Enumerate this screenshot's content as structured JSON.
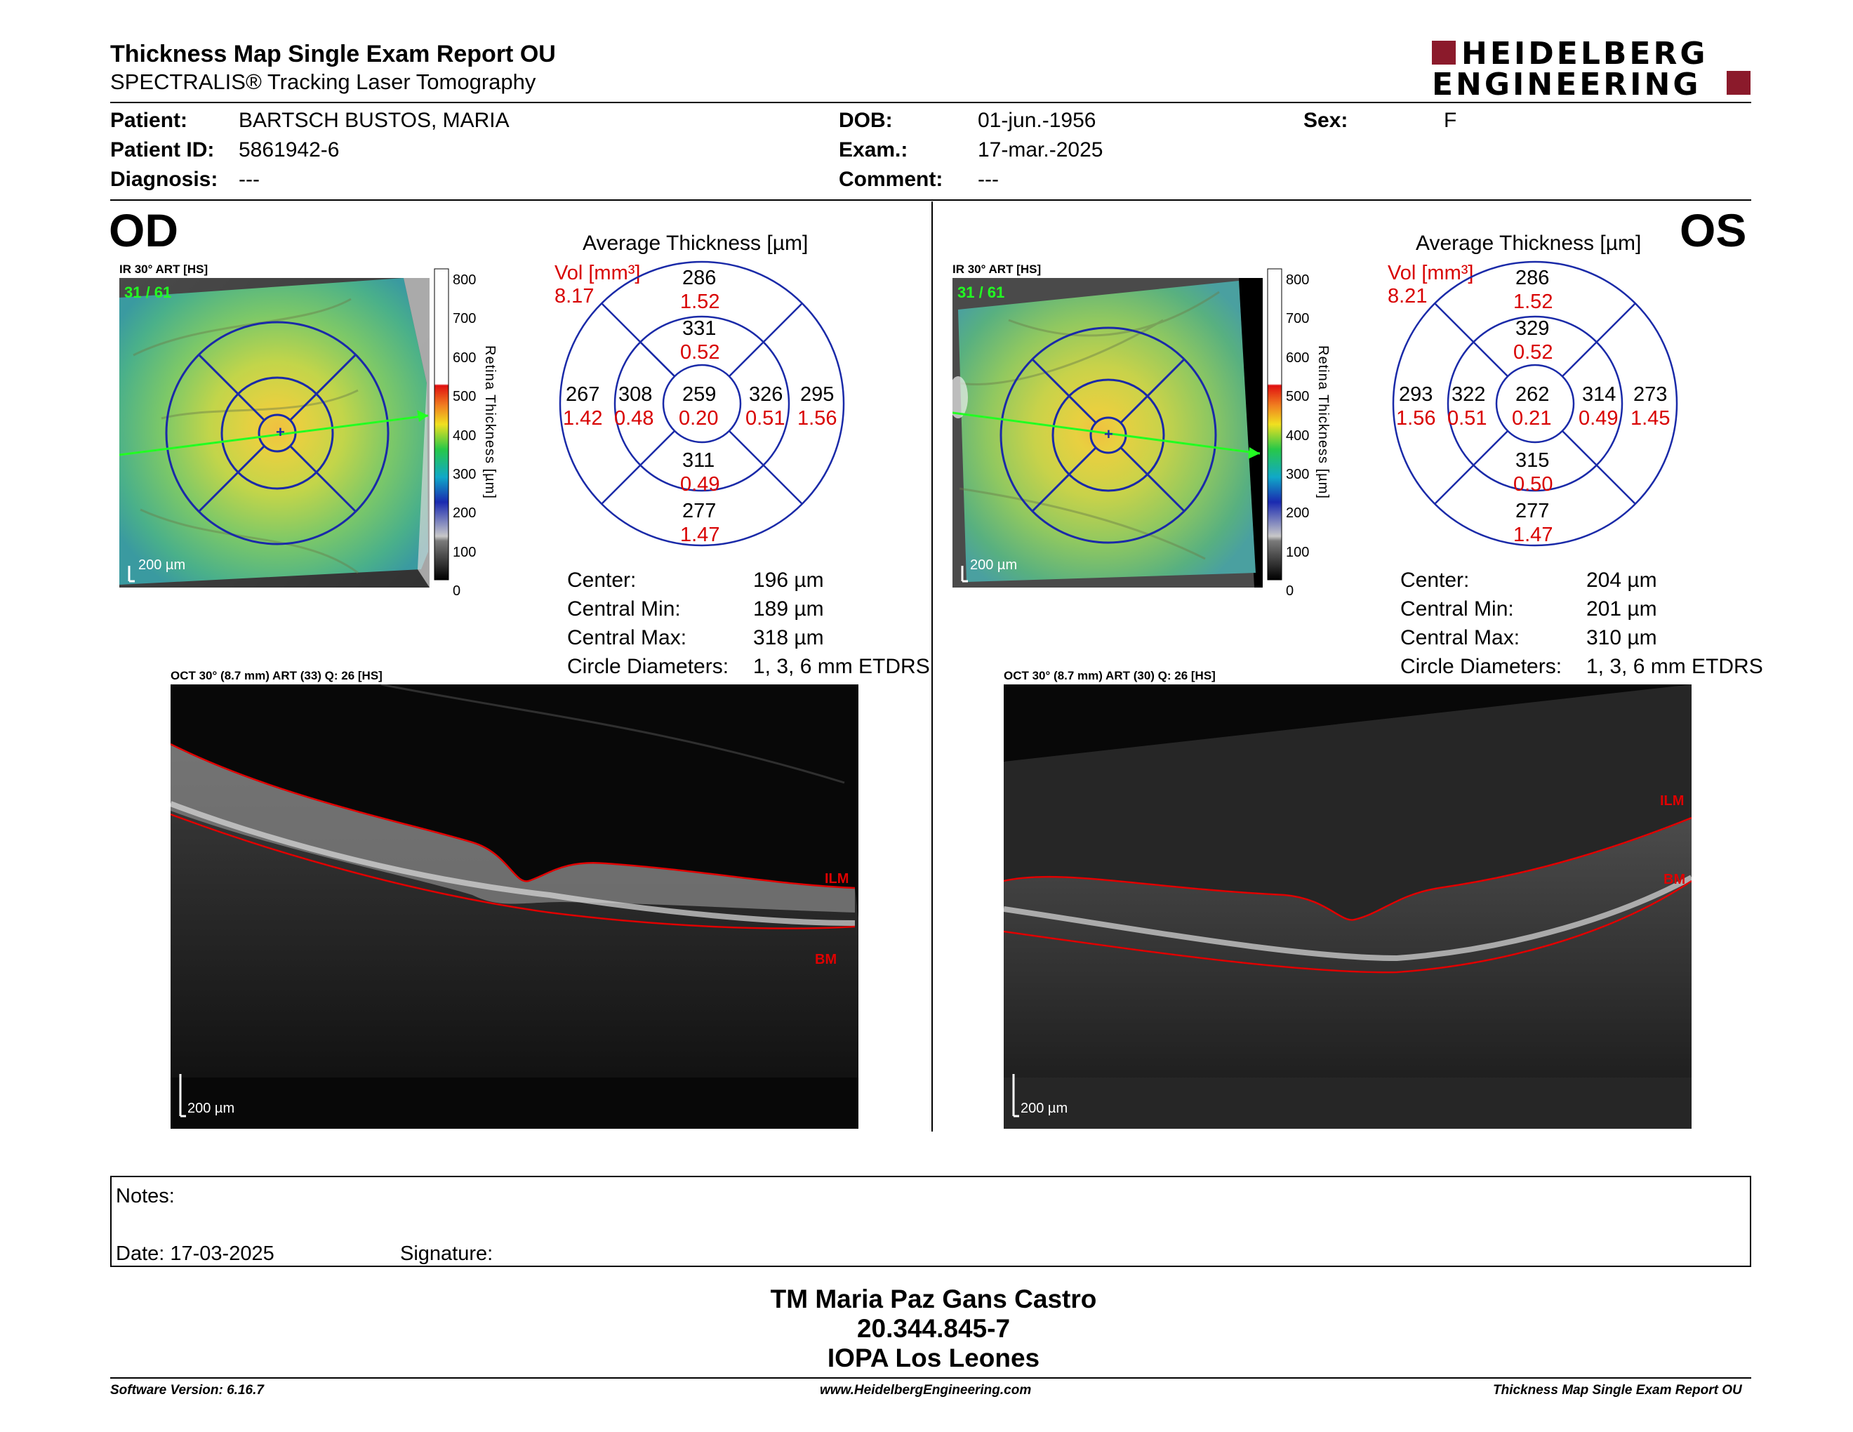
{
  "header": {
    "title": "Thickness Map Single Exam Report OU",
    "subtitle": "SPECTRALIS® Tracking Laser Tomography",
    "logo_line1": "HEIDELBERG",
    "logo_line2": "ENGINEERING"
  },
  "patient": {
    "patient_label": "Patient:",
    "patient_value": "BARTSCH BUSTOS, MARIA",
    "id_label": "Patient ID:",
    "id_value": "5861942-6",
    "diagnosis_label": "Diagnosis:",
    "diagnosis_value": "---",
    "dob_label": "DOB:",
    "dob_value": "01-jun.-1956",
    "exam_label": "Exam.:",
    "exam_value": "17-mar.-2025",
    "comment_label": "Comment:",
    "comment_value": "---",
    "sex_label": "Sex:",
    "sex_value": "F"
  },
  "colorbar": {
    "ticks": [
      "800",
      "700",
      "600",
      "500",
      "400",
      "300",
      "200",
      "100",
      "0"
    ],
    "title": "Retina  Thickness [µm]"
  },
  "od": {
    "eye_label": "OD",
    "ir_header": "IR 30° ART [HS]",
    "frame": "31 / 61",
    "ir_scale": "200 µm",
    "avg_title": "Average Thickness [µm]",
    "vol_label": "Vol [mm³]",
    "vol_total": "8.17",
    "grid": {
      "center": {
        "t": "259",
        "v": "0.20"
      },
      "inner_sup": {
        "t": "331",
        "v": "0.52"
      },
      "inner_inf": {
        "t": "311",
        "v": "0.49"
      },
      "inner_left": {
        "t": "308",
        "v": "0.48"
      },
      "inner_right": {
        "t": "326",
        "v": "0.51"
      },
      "outer_sup": {
        "t": "286",
        "v": "1.52"
      },
      "outer_inf": {
        "t": "277",
        "v": "1.47"
      },
      "outer_left": {
        "t": "267",
        "v": "1.42"
      },
      "outer_right": {
        "t": "295",
        "v": "1.56"
      }
    },
    "stats": {
      "center_label": "Center:",
      "center_value": "196 µm",
      "min_label": "Central Min:",
      "min_value": "189 µm",
      "max_label": "Central Max:",
      "max_value": "318 µm",
      "diam_label": "Circle Diameters:",
      "diam_value": "1, 3, 6 mm ETDRS"
    },
    "oct_header": "OCT 30° (8.7 mm) ART (33) Q: 26 [HS]",
    "oct_scale": "200 µm",
    "ilm_label": "ILM",
    "bm_label": "BM"
  },
  "os": {
    "eye_label": "OS",
    "ir_header": "IR 30° ART [HS]",
    "frame": "31 / 61",
    "ir_scale": "200 µm",
    "avg_title": "Average Thickness [µm]",
    "vol_label": "Vol [mm³]",
    "vol_total": "8.21",
    "grid": {
      "center": {
        "t": "262",
        "v": "0.21"
      },
      "inner_sup": {
        "t": "329",
        "v": "0.52"
      },
      "inner_inf": {
        "t": "315",
        "v": "0.50"
      },
      "inner_left": {
        "t": "322",
        "v": "0.51"
      },
      "inner_right": {
        "t": "314",
        "v": "0.49"
      },
      "outer_sup": {
        "t": "286",
        "v": "1.52"
      },
      "outer_inf": {
        "t": "277",
        "v": "1.47"
      },
      "outer_left": {
        "t": "293",
        "v": "1.56"
      },
      "outer_right": {
        "t": "273",
        "v": "1.45"
      }
    },
    "stats": {
      "center_label": "Center:",
      "center_value": "204 µm",
      "min_label": "Central Min:",
      "min_value": "201 µm",
      "max_label": "Central Max:",
      "max_value": "310 µm",
      "diam_label": "Circle Diameters:",
      "diam_value": "1, 3, 6 mm ETDRS"
    },
    "oct_header": "OCT 30° (8.7 mm) ART (30) Q: 26 [HS]",
    "oct_scale": "200 µm",
    "ilm_label": "ILM",
    "bm_label": "BM"
  },
  "notes": {
    "notes_label": "Notes:",
    "date_label": "Date: 17-03-2025",
    "signature_label": "Signature:"
  },
  "signer": {
    "name": "TM Maria Paz Gans Castro",
    "rut": "20.344.845-7",
    "institution": "IOPA Los Leones"
  },
  "footer": {
    "software": "Software Version: 6.16.7",
    "website": "www.HeidelbergEngineering.com",
    "report": "Thickness Map Single Exam Report OU"
  },
  "colors": {
    "grid_blue": "#1a2aa8",
    "value_red": "#d80000",
    "segmentation_red": "#e00000",
    "logo_red": "#8b1a2b"
  }
}
